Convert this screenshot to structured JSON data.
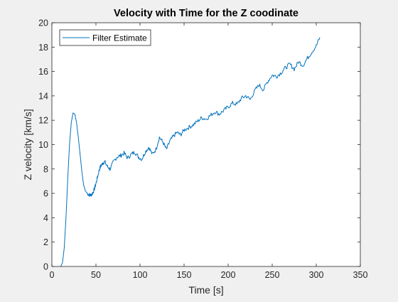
{
  "chart_data": {
    "type": "line",
    "title": "Velocity with Time for the Z coodinate",
    "xlabel": "Time [s]",
    "ylabel": "Z velocity [km/s]",
    "xlim": [
      0,
      350
    ],
    "ylim": [
      0,
      20
    ],
    "xticks": [
      0,
      50,
      100,
      150,
      200,
      250,
      300,
      350
    ],
    "yticks": [
      0,
      2,
      4,
      6,
      8,
      10,
      12,
      14,
      16,
      18,
      20
    ],
    "grid": false,
    "legend_position": "top-left",
    "series": [
      {
        "name": "Filter Estimate",
        "color": "#0072BD",
        "x": [
          10,
          12,
          14,
          16,
          18,
          20,
          22,
          24,
          26,
          28,
          30,
          32,
          34,
          36,
          38,
          40,
          42,
          44,
          46,
          48,
          50,
          52,
          54,
          56,
          58,
          60,
          63,
          66,
          70,
          74,
          78,
          82,
          86,
          90,
          94,
          98,
          102,
          106,
          110,
          114,
          118,
          122,
          126,
          130,
          134,
          138,
          142,
          146,
          150,
          155,
          160,
          165,
          170,
          175,
          180,
          185,
          190,
          195,
          200,
          205,
          210,
          215,
          220,
          225,
          230,
          235,
          240,
          245,
          250,
          255,
          260,
          265,
          270,
          275,
          280,
          285,
          290,
          295,
          300,
          304
        ],
        "values": [
          0.0,
          0.3,
          1.5,
          4.0,
          7.2,
          10.0,
          11.8,
          12.6,
          12.5,
          11.8,
          10.6,
          9.2,
          7.8,
          6.7,
          6.2,
          6.0,
          5.9,
          5.85,
          6.0,
          6.3,
          6.8,
          7.4,
          8.0,
          8.3,
          8.5,
          8.6,
          8.2,
          8.0,
          8.6,
          9.0,
          9.1,
          9.3,
          8.9,
          9.2,
          9.4,
          9.0,
          8.8,
          9.4,
          9.8,
          9.2,
          9.6,
          10.6,
          10.2,
          9.6,
          10.3,
          10.7,
          11.0,
          10.8,
          11.2,
          11.4,
          11.6,
          11.9,
          12.2,
          12.1,
          12.4,
          12.7,
          12.5,
          12.8,
          13.1,
          13.4,
          13.3,
          13.8,
          14.0,
          13.7,
          14.4,
          14.9,
          14.5,
          15.2,
          15.7,
          15.6,
          15.9,
          16.3,
          16.6,
          16.2,
          16.8,
          16.5,
          17.1,
          17.6,
          18.1,
          18.8
        ]
      }
    ]
  }
}
